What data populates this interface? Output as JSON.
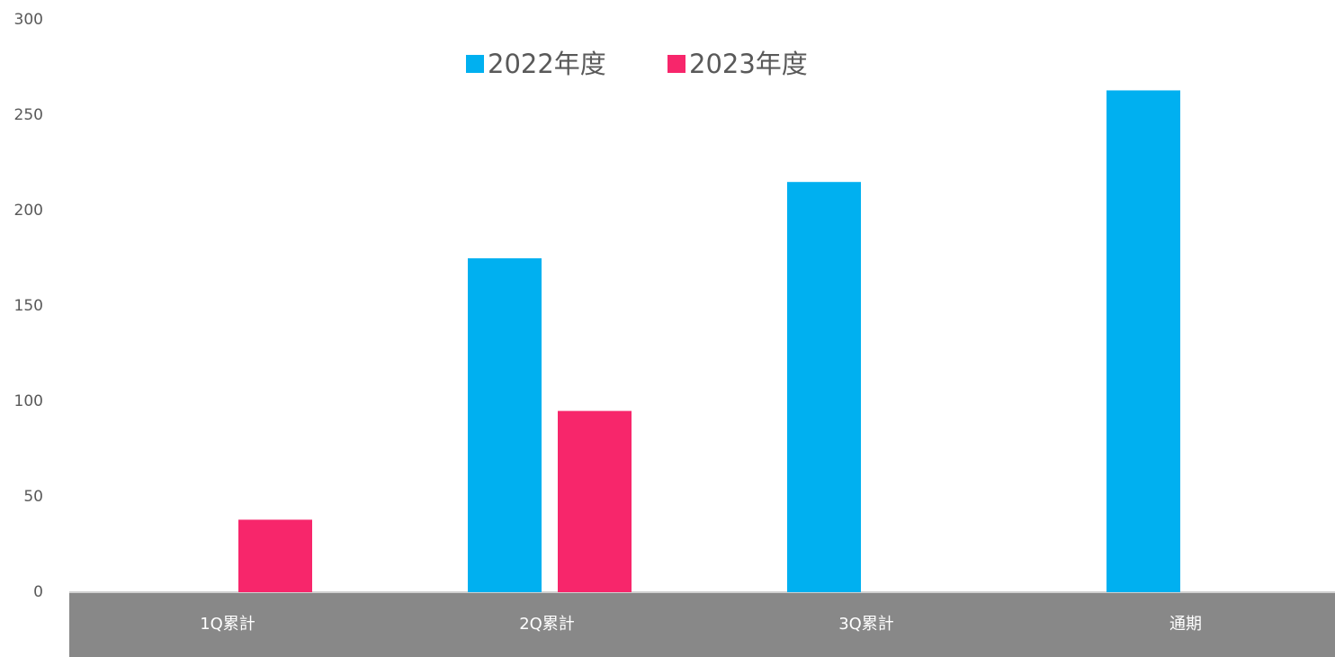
{
  "chart_data": {
    "type": "bar",
    "categories": [
      "1Q累計",
      "2Q累計",
      "3Q累計",
      "通期"
    ],
    "series": [
      {
        "name": "2022年度",
        "color": "#00b0f0",
        "values": [
          null,
          175,
          215,
          263
        ]
      },
      {
        "name": "2023年度",
        "color": "#f7266b",
        "values": [
          38,
          95,
          null,
          null
        ]
      }
    ],
    "ylim": [
      0,
      300
    ],
    "yticks": [
      0,
      50,
      100,
      150,
      200,
      250,
      300
    ],
    "grid": false,
    "legend": "top"
  }
}
